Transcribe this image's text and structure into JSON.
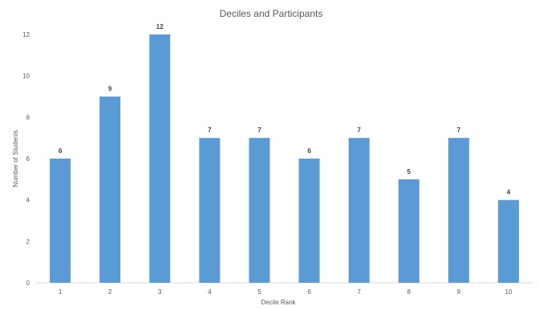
{
  "chart_data": {
    "type": "bar",
    "title": "Deciles and Participants",
    "xlabel": "Decile Rank",
    "ylabel": "Number of Students",
    "categories": [
      "1",
      "2",
      "3",
      "4",
      "5",
      "6",
      "7",
      "8",
      "9",
      "10"
    ],
    "values": [
      6,
      9,
      12,
      7,
      7,
      6,
      7,
      5,
      7,
      4
    ],
    "data_labels": [
      "6",
      "9",
      "12",
      "7",
      "7",
      "6",
      "7",
      "5",
      "7",
      "4"
    ],
    "ylim": [
      0,
      12
    ],
    "yticks": [
      0,
      2,
      4,
      6,
      8,
      10,
      12
    ],
    "ytick_labels": [
      "0",
      "2",
      "4",
      "6",
      "8",
      "10",
      "12"
    ],
    "grid": false,
    "legend": "none",
    "colors": {
      "bar": "#5b9bd5",
      "text": "#595959",
      "data_label": "#404040",
      "axis": "#d9d9d9"
    }
  }
}
